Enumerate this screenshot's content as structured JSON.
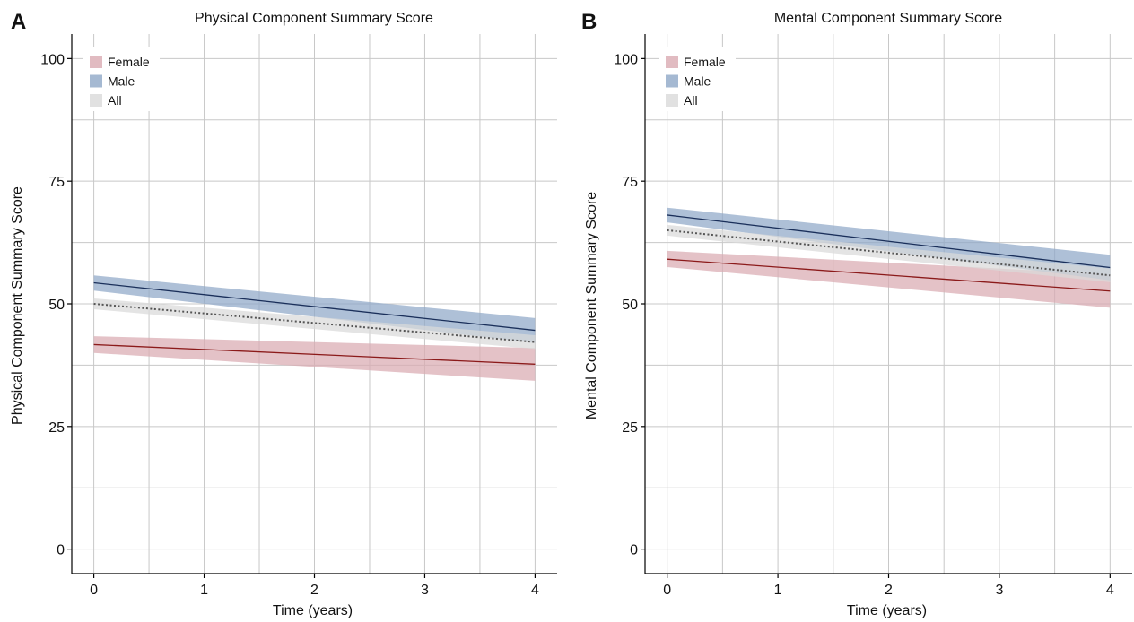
{
  "colors": {
    "female_band": "#d9aab2",
    "male_band": "#8fa7c7",
    "all_band": "#d9d9d9",
    "female_line": "#8b1a1a",
    "male_line": "#1a2f5a",
    "all_line": "#555555",
    "grid": "#c8c8c8",
    "axis": "#000000"
  },
  "chart_data": [
    {
      "panel_letter": "A",
      "type": "line",
      "title": "Physical Component Summary Score",
      "xlabel": "Time (years)",
      "ylabel": "Physical Component Summary Score",
      "xlim": [
        -0.2,
        4.2
      ],
      "ylim": [
        -5,
        105
      ],
      "xticks": [
        0,
        1,
        2,
        3,
        4
      ],
      "yticks": [
        0,
        25,
        50,
        75,
        100
      ],
      "grid": true,
      "legend_position": "top-left",
      "series": [
        {
          "name": "Female",
          "x": [
            0,
            4
          ],
          "y": [
            41.7,
            37.7
          ],
          "lower": [
            40.0,
            34.3
          ],
          "upper": [
            43.4,
            41.0
          ],
          "line_style": "solid"
        },
        {
          "name": "Male",
          "x": [
            0,
            4
          ],
          "y": [
            54.3,
            44.6
          ],
          "lower": [
            52.7,
            42.0
          ],
          "upper": [
            55.8,
            47.1
          ],
          "line_style": "solid"
        },
        {
          "name": "All",
          "x": [
            0,
            4
          ],
          "y": [
            50.0,
            42.2
          ],
          "lower": [
            48.9,
            40.8
          ],
          "upper": [
            51.1,
            43.6
          ],
          "line_style": "dotted"
        }
      ]
    },
    {
      "panel_letter": "B",
      "type": "line",
      "title": "Mental Component Summary Score",
      "xlabel": "Time (years)",
      "ylabel": "Mental Component Summary Score",
      "xlim": [
        -0.2,
        4.2
      ],
      "ylim": [
        -5,
        105
      ],
      "xticks": [
        0,
        1,
        2,
        3,
        4
      ],
      "yticks": [
        0,
        25,
        50,
        75,
        100
      ],
      "grid": true,
      "legend_position": "top-left",
      "series": [
        {
          "name": "Female",
          "x": [
            0,
            4
          ],
          "y": [
            59.1,
            52.6
          ],
          "lower": [
            57.5,
            49.2
          ],
          "upper": [
            60.8,
            56.0
          ],
          "line_style": "solid"
        },
        {
          "name": "Male",
          "x": [
            0,
            4
          ],
          "y": [
            68.1,
            57.4
          ],
          "lower": [
            66.6,
            54.8
          ],
          "upper": [
            69.6,
            60.0
          ],
          "line_style": "solid"
        },
        {
          "name": "All",
          "x": [
            0,
            4
          ],
          "y": [
            65.0,
            55.8
          ],
          "lower": [
            63.9,
            54.4
          ],
          "upper": [
            66.1,
            57.2
          ],
          "line_style": "dotted"
        }
      ]
    }
  ]
}
